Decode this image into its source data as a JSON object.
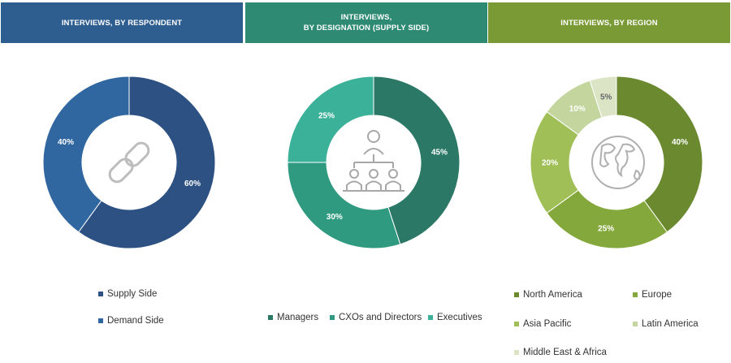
{
  "colors": {
    "header_respondent": "#2e5d8f",
    "header_designation": "#2e8a73",
    "header_region": "#7a9a36"
  },
  "headers": {
    "respondent": [
      "INTERVIEWS, BY RESPONDENT"
    ],
    "designation": [
      "INTERVIEWS,",
      "BY DESIGNATION (SUPPLY SIDE)"
    ],
    "region": [
      "INTERVIEWS, BY REGION"
    ]
  },
  "icons": {
    "respondent": "chain-link-icon",
    "designation": "org-chart-icon",
    "region": "globe-icon"
  },
  "chart_data": [
    {
      "type": "pie",
      "title": "INTERVIEWS, BY RESPONDENT",
      "categories": [
        "Supply Side",
        "Demand Side"
      ],
      "values": [
        60,
        40
      ],
      "labels": [
        "60%",
        "40%"
      ],
      "colors": [
        "#2c5182",
        "#3167a0"
      ],
      "label_colors": [
        "#ffffff",
        "#ffffff"
      ],
      "legend_position": "bottom"
    },
    {
      "type": "pie",
      "title": "INTERVIEWS, BY DESIGNATION (SUPPLY SIDE)",
      "categories": [
        "Managers",
        "CXOs and Directors",
        "Executives"
      ],
      "values": [
        45,
        30,
        25
      ],
      "labels": [
        "45%",
        "30%",
        "25%"
      ],
      "colors": [
        "#2b7866",
        "#2f9a80",
        "#3cb19a"
      ],
      "label_colors": [
        "#ffffff",
        "#ffffff",
        "#ffffff"
      ],
      "legend_position": "bottom"
    },
    {
      "type": "pie",
      "title": "INTERVIEWS, BY REGION",
      "categories": [
        "North America",
        "Europe",
        "Asia Pacific",
        "Latin America",
        "Middle East & Africa"
      ],
      "values": [
        40,
        25,
        20,
        10,
        5
      ],
      "labels": [
        "40%",
        "25%",
        "20%",
        "10%",
        "5%"
      ],
      "colors": [
        "#6b8a30",
        "#85a83c",
        "#a0c057",
        "#c4d69e",
        "#dbe5c6"
      ],
      "label_colors": [
        "#ffffff",
        "#ffffff",
        "#ffffff",
        "#ffffff",
        "#666666"
      ],
      "legend_position": "bottom"
    }
  ]
}
